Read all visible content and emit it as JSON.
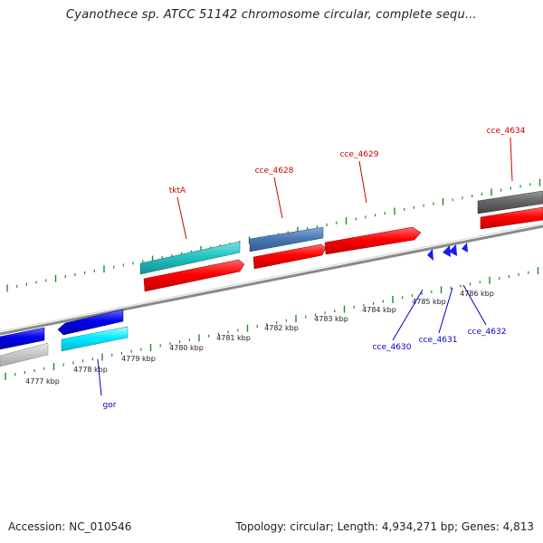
{
  "title": "Cyanothece sp. ATCC 51142 chromosome circular, complete sequ...",
  "footer": {
    "accession": "Accession: NC_010546",
    "summary": "Topology: circular; Length: 4,934,271 bp; Genes: 4,813"
  },
  "colors": {
    "forward_label": "#cc0000",
    "reverse_label": "#0000cc",
    "tick": "#228b22",
    "backbone": "#999999"
  },
  "ticks": [
    {
      "kbp": 4777,
      "label": "4777 kbp"
    },
    {
      "kbp": 4778,
      "label": "4778 kbp"
    },
    {
      "kbp": 4779,
      "label": "4779 kbp"
    },
    {
      "kbp": 4780,
      "label": "4780 kbp"
    },
    {
      "kbp": 4781,
      "label": "4781 kbp"
    },
    {
      "kbp": 4782,
      "label": "4782 kbp"
    },
    {
      "kbp": 4783,
      "label": "4783 kbp"
    },
    {
      "kbp": 4784,
      "label": "4784 kbp"
    },
    {
      "kbp": 4785,
      "label": "4785 kbp"
    },
    {
      "kbp": 4786,
      "label": "4786 kbp"
    }
  ],
  "forward_labels": [
    {
      "name": "tktA"
    },
    {
      "name": "cce_4628"
    },
    {
      "name": "cce_4629"
    },
    {
      "name": "cce_4634"
    }
  ],
  "reverse_labels": [
    {
      "name": "gor"
    },
    {
      "name": "cce_4630"
    },
    {
      "name": "cce_4631"
    },
    {
      "name": "cce_4632"
    }
  ]
}
